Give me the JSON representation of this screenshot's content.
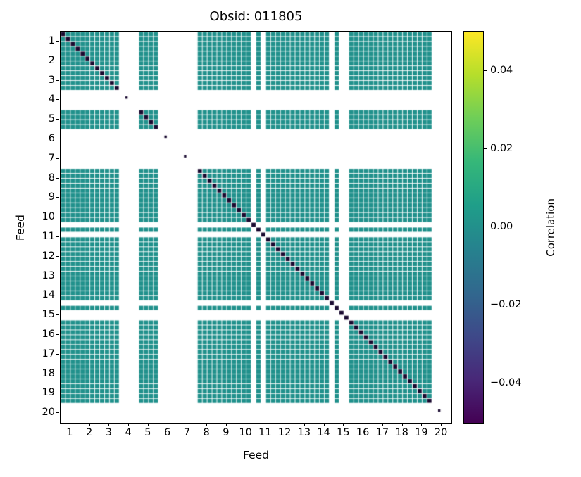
{
  "title": "Obsid: 011805",
  "axes": {
    "xlabel": "Feed",
    "ylabel": "Feed",
    "x_ticks": [
      "1",
      "2",
      "3",
      "4",
      "5",
      "6",
      "7",
      "8",
      "9",
      "10",
      "11",
      "12",
      "13",
      "14",
      "15",
      "16",
      "17",
      "18",
      "19",
      "20"
    ],
    "y_ticks": [
      "1",
      "2",
      "3",
      "4",
      "5",
      "6",
      "7",
      "8",
      "9",
      "10",
      "11",
      "12",
      "13",
      "14",
      "15",
      "16",
      "17",
      "18",
      "19",
      "20"
    ]
  },
  "colorbar": {
    "label": "Correlation",
    "vmin": -0.05,
    "vmax": 0.05,
    "ticks": [
      {
        "label": "0.04",
        "value": 0.04
      },
      {
        "label": "0.02",
        "value": 0.02
      },
      {
        "label": "0.00",
        "value": 0.0
      },
      {
        "label": "−0.02",
        "value": -0.02
      },
      {
        "label": "−0.04",
        "value": -0.04
      }
    ],
    "colormap": "viridis",
    "gradient": [
      "#440154",
      "#482878",
      "#3e4989",
      "#31688e",
      "#26828e",
      "#1f9e89",
      "#35b779",
      "#6ece58",
      "#b5de2b",
      "#fde725"
    ]
  },
  "chart_data": {
    "type": "heatmap",
    "title": "Obsid: 011805",
    "xlabel": "Feed",
    "ylabel": "Feed",
    "colormap": "viridis",
    "vmin": -0.05,
    "vmax": 0.05,
    "n_feeds": 20,
    "channels_per_feed": 4,
    "off_diagonal_value": 0.0,
    "off_diagonal_color": "#21918c",
    "diagonal_color": "#1a0a30",
    "missing_feeds": [
      4,
      6,
      7,
      20
    ],
    "missing_channels": [
      [
        10,
        3
      ],
      [
        11,
        1
      ],
      [
        14,
        3
      ],
      [
        15,
        1
      ],
      [
        15,
        2
      ]
    ],
    "grid": "thin white lines between every channel cell",
    "legend_position": "right colorbar",
    "notes": "Cross-feed correlation matrix: nearly all off-diagonal cells ≈ 0.00 (teal, viridis midpoint). Diagonal auto-correlation cells appear as dark dots stepping from top-left to bottom-right. Feeds 4, 6, 7 and 20 are absent (white rows/columns except a tiny diagonal dot); a few individual channels around feeds 10-11 and 14-15 are also blank, producing thin white stripes."
  }
}
